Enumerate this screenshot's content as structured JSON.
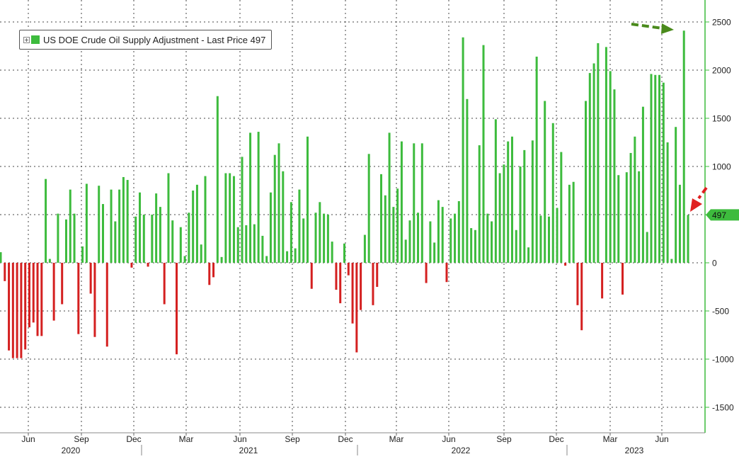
{
  "legend": {
    "label": "US DOE Crude Oil Supply Adjustment - Last Price 497"
  },
  "last_value_label": "497",
  "colors": {
    "positive": "#3dbb3d",
    "negative": "#d42020",
    "axis": "#3dbb3d",
    "last_tag": "#3dbb3d",
    "arrow_green": "#4a8a1c",
    "arrow_red": "#e02020"
  },
  "chart_data": {
    "type": "bar",
    "title": "",
    "xlabel": "",
    "ylabel": "",
    "ylim": [
      -1700,
      2600
    ],
    "yticks": [
      2500,
      2000,
      1500,
      1000,
      500,
      0,
      -500,
      -1000,
      -1500
    ],
    "ytick_labels": [
      "2500",
      "2000",
      "1500",
      "1000",
      "500",
      "0",
      "-500",
      "-1000",
      "-1500"
    ],
    "x_month_labels": [
      "Jun",
      "Sep",
      "Dec",
      "Mar",
      "Jun",
      "Sep",
      "Dec",
      "Mar",
      "Jun",
      "Sep",
      "Dec",
      "Mar",
      "Jun"
    ],
    "x_year_labels": [
      "2020",
      "2021",
      "2022",
      "2023"
    ],
    "grid": true,
    "legend_position": "top-left",
    "last_value": 497,
    "series": [
      {
        "name": "US DOE Crude Oil Supply Adjustment",
        "values": [
          110,
          -190,
          -910,
          -990,
          -990,
          -990,
          -900,
          -670,
          -620,
          -760,
          -760,
          870,
          40,
          -600,
          510,
          -430,
          450,
          760,
          510,
          -740,
          170,
          820,
          -320,
          -770,
          800,
          610,
          -870,
          760,
          430,
          760,
          890,
          860,
          -50,
          480,
          730,
          500,
          -40,
          500,
          720,
          580,
          -430,
          930,
          440,
          -950,
          370,
          70,
          520,
          750,
          810,
          190,
          900,
          -230,
          -150,
          1730,
          60,
          930,
          930,
          900,
          370,
          1100,
          390,
          1350,
          400,
          1360,
          280,
          70,
          730,
          1120,
          1240,
          950,
          120,
          630,
          150,
          760,
          460,
          1310,
          -270,
          520,
          630,
          510,
          500,
          220,
          -280,
          -420,
          200,
          -130,
          -630,
          -930,
          -490,
          290,
          1130,
          -440,
          -250,
          920,
          700,
          1350,
          580,
          770,
          1260,
          240,
          440,
          1240,
          520,
          1240,
          -210,
          430,
          210,
          650,
          580,
          -200,
          460,
          510,
          640,
          2340,
          1700,
          360,
          340,
          1220,
          2260,
          510,
          430,
          1490,
          930,
          1020,
          1260,
          1310,
          340,
          1000,
          1170,
          160,
          1270,
          2140,
          490,
          1680,
          480,
          1450,
          570,
          1150,
          -30,
          810,
          840,
          -440,
          -700,
          1680,
          1970,
          2070,
          2280,
          -370,
          2240,
          1990,
          1800,
          910,
          -330,
          940,
          1140,
          1310,
          950,
          1620,
          320,
          1960,
          1950,
          1950,
          1870,
          1250,
          40,
          1410,
          810,
          2410,
          497
        ]
      }
    ]
  }
}
